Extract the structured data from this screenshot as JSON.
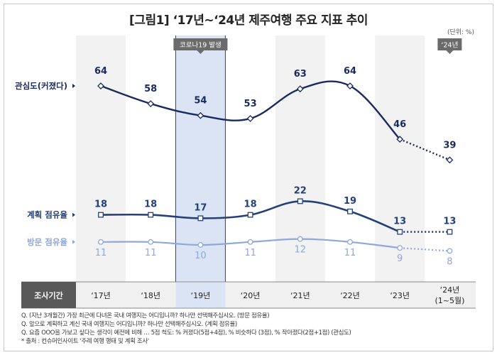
{
  "title": "[그림1] ‘17년~‘24년 제주여행 주요 지표 추이",
  "unit": "(단위: %)",
  "covid_badge": "코로나19 발생",
  "badge_24": "‘24년",
  "row_header": "조사기간",
  "notes": [
    "Q. (지난 3개월간) 가장 최근에 다녀온 국내 여행지는 어디입니까? 하나만 선택해주십시오. (방문 점유율)",
    "Q. 앞으로 계획하고 계신 국내 여행지는 어디입니까? 하나만 선택해주십시오. (계획 점유율)",
    "Q. 요즘 OOO을 가보고 싶다는 생각이 예전에 비해 … 5점 척도: % 커졌다(5점+4점), % 비슷하다 (3점), % 작아졌다(2점+1점) (관심도)",
    "* 출처 : 컨슈머인사이트 '주례 여행 행태 및 계획 조사'"
  ],
  "colors": {
    "interest": "#1b2a5e",
    "plan": "#23407a",
    "visit": "#8fa8db",
    "highlight": "#dbe4f5",
    "stripe": "#f2f2f2",
    "header_bar": "#595959"
  },
  "chart_data": {
    "type": "line",
    "categories": [
      "‘17년",
      "‘18년",
      "‘19년",
      "‘20년",
      "‘21년",
      "‘22년",
      "‘23년",
      "‘24년\n(1~5월)"
    ],
    "series": [
      {
        "name": "관심도(커졌다)",
        "values": [
          64,
          58,
          54,
          53,
          63,
          64,
          46,
          39
        ]
      },
      {
        "name": "계획 점유율",
        "values": [
          18,
          18,
          17,
          18,
          22,
          19,
          13,
          13
        ]
      },
      {
        "name": "방문 점유율",
        "values": [
          11,
          11,
          10,
          11,
          12,
          11,
          9,
          8
        ]
      }
    ],
    "last_segment_dotted": true,
    "highlighted_category": "‘19년"
  }
}
